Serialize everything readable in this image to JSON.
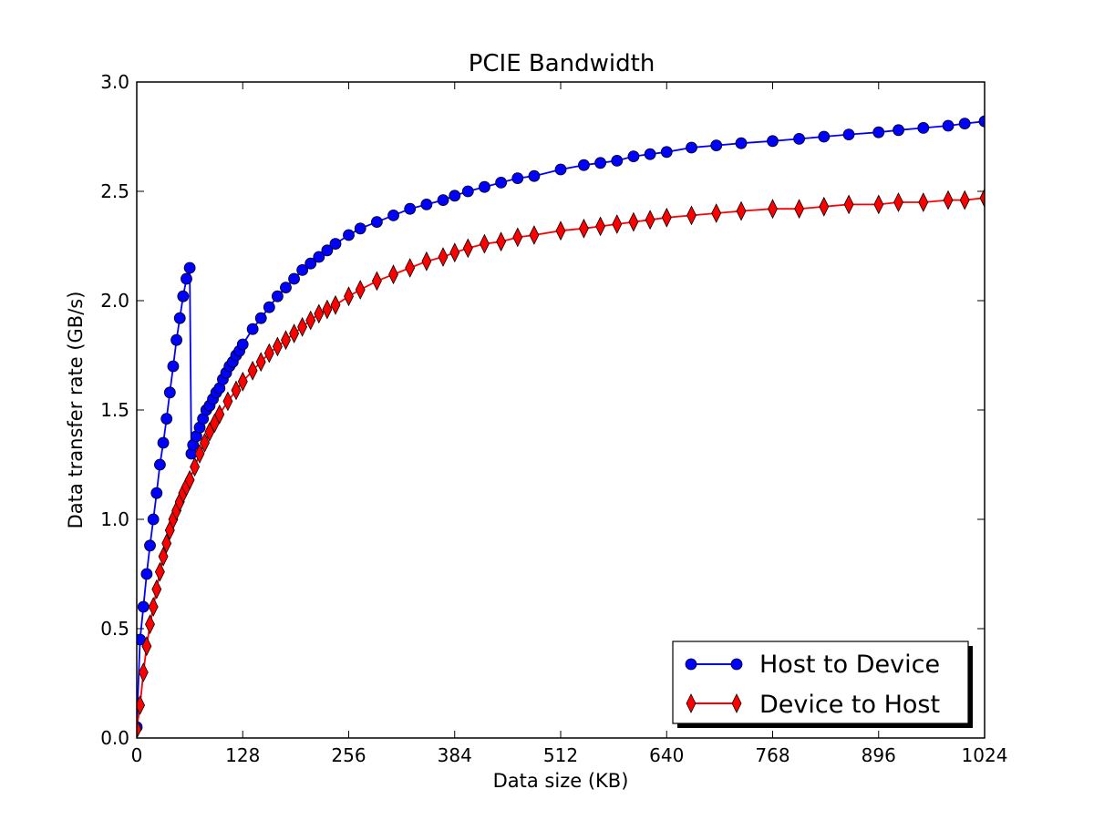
{
  "chart_data": {
    "type": "line",
    "title": "PCIE Bandwidth",
    "xlabel": "Data size (KB)",
    "ylabel": "Data transfer rate (GB/s)",
    "xlim": [
      0,
      1024
    ],
    "ylim": [
      0.0,
      3.0
    ],
    "xticks": [
      0,
      128,
      256,
      384,
      512,
      640,
      768,
      896,
      1024
    ],
    "xtick_labels": [
      "0",
      "128",
      "256",
      "384",
      "512",
      "640",
      "768",
      "896",
      "1024"
    ],
    "yticks": [
      0.0,
      0.5,
      1.0,
      1.5,
      2.0,
      2.5,
      3.0
    ],
    "ytick_labels": [
      "0.0",
      "0.5",
      "1.0",
      "1.5",
      "2.0",
      "2.5",
      "3.0"
    ],
    "grid": false,
    "legend_position": "bottom-right",
    "series": [
      {
        "name": "Host to Device",
        "color": "#0000ff",
        "marker": "circle",
        "x": [
          0,
          4,
          8,
          12,
          16,
          20,
          24,
          28,
          32,
          36,
          40,
          44,
          48,
          52,
          56,
          60,
          64,
          66,
          68,
          72,
          76,
          80,
          84,
          88,
          92,
          96,
          100,
          104,
          108,
          112,
          116,
          120,
          124,
          128,
          140,
          150,
          160,
          170,
          180,
          190,
          200,
          210,
          220,
          230,
          240,
          256,
          270,
          290,
          310,
          330,
          350,
          370,
          384,
          400,
          420,
          440,
          460,
          480,
          512,
          540,
          560,
          580,
          600,
          620,
          640,
          670,
          700,
          730,
          768,
          800,
          830,
          860,
          896,
          920,
          950,
          980,
          1000,
          1024
        ],
        "y": [
          0.05,
          0.45,
          0.6,
          0.75,
          0.88,
          1.0,
          1.12,
          1.25,
          1.35,
          1.46,
          1.58,
          1.7,
          1.82,
          1.92,
          2.02,
          2.1,
          2.15,
          1.3,
          1.34,
          1.38,
          1.42,
          1.46,
          1.5,
          1.52,
          1.55,
          1.58,
          1.6,
          1.64,
          1.67,
          1.7,
          1.72,
          1.75,
          1.77,
          1.8,
          1.87,
          1.92,
          1.97,
          2.02,
          2.06,
          2.1,
          2.14,
          2.17,
          2.2,
          2.23,
          2.26,
          2.3,
          2.33,
          2.36,
          2.39,
          2.42,
          2.44,
          2.46,
          2.48,
          2.5,
          2.52,
          2.54,
          2.56,
          2.57,
          2.6,
          2.62,
          2.63,
          2.64,
          2.66,
          2.67,
          2.68,
          2.7,
          2.71,
          2.72,
          2.73,
          2.74,
          2.75,
          2.76,
          2.77,
          2.78,
          2.79,
          2.8,
          2.81,
          2.82
        ]
      },
      {
        "name": "Device to Host",
        "color": "#ff0000",
        "marker": "diamond",
        "x": [
          0,
          4,
          8,
          12,
          16,
          20,
          24,
          28,
          32,
          36,
          40,
          44,
          48,
          52,
          56,
          60,
          64,
          70,
          76,
          82,
          88,
          94,
          100,
          110,
          120,
          128,
          140,
          150,
          160,
          170,
          180,
          190,
          200,
          210,
          220,
          230,
          240,
          256,
          270,
          290,
          310,
          330,
          350,
          370,
          384,
          400,
          420,
          440,
          460,
          480,
          512,
          540,
          560,
          580,
          600,
          620,
          640,
          670,
          700,
          730,
          768,
          800,
          830,
          860,
          896,
          920,
          950,
          980,
          1000,
          1024
        ],
        "y": [
          0.04,
          0.15,
          0.3,
          0.42,
          0.52,
          0.6,
          0.68,
          0.76,
          0.83,
          0.89,
          0.95,
          1.0,
          1.04,
          1.08,
          1.12,
          1.15,
          1.18,
          1.24,
          1.3,
          1.35,
          1.4,
          1.44,
          1.48,
          1.54,
          1.59,
          1.63,
          1.68,
          1.72,
          1.76,
          1.79,
          1.82,
          1.85,
          1.88,
          1.91,
          1.94,
          1.96,
          1.98,
          2.02,
          2.05,
          2.09,
          2.12,
          2.15,
          2.18,
          2.2,
          2.22,
          2.24,
          2.26,
          2.27,
          2.29,
          2.3,
          2.32,
          2.33,
          2.34,
          2.35,
          2.36,
          2.37,
          2.38,
          2.39,
          2.4,
          2.41,
          2.42,
          2.42,
          2.43,
          2.44,
          2.44,
          2.45,
          2.45,
          2.46,
          2.46,
          2.47
        ]
      }
    ]
  }
}
